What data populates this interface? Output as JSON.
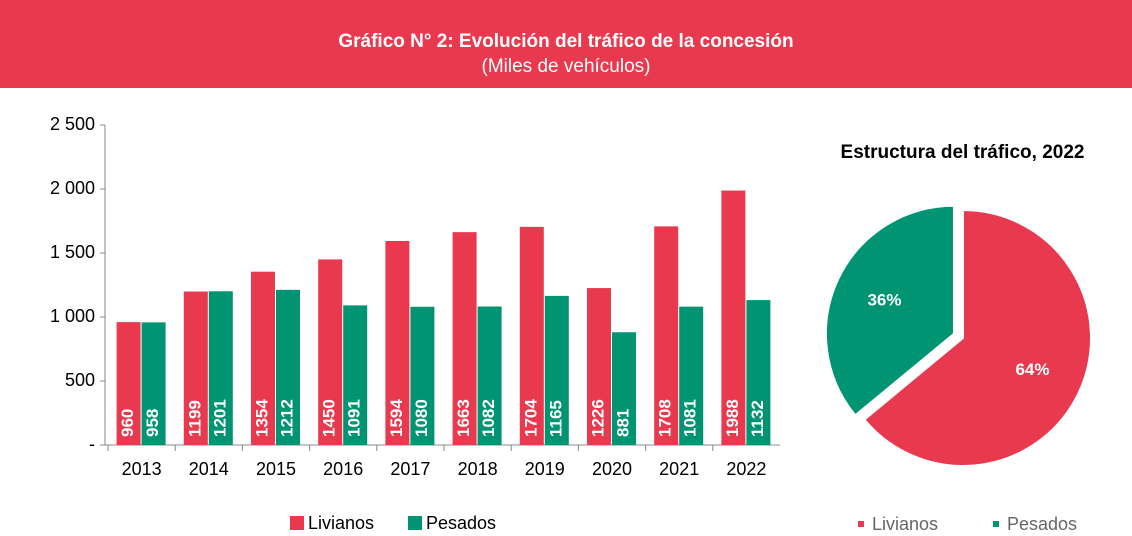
{
  "header": {
    "title": "Gráfico N° 2: Evolución del tráfico de la concesión",
    "subtitle": "(Miles de vehículos)"
  },
  "chart_data": [
    {
      "type": "bar",
      "categories": [
        "2013",
        "2014",
        "2015",
        "2016",
        "2017",
        "2018",
        "2019",
        "2020",
        "2021",
        "2022"
      ],
      "series": [
        {
          "name": "Livianos",
          "color": "#e8394f",
          "values": [
            960,
            1199,
            1354,
            1450,
            1594,
            1663,
            1704,
            1226,
            1708,
            1988
          ]
        },
        {
          "name": "Pesados",
          "color": "#009473",
          "values": [
            958,
            1201,
            1212,
            1091,
            1080,
            1082,
            1165,
            881,
            1081,
            1132
          ]
        }
      ],
      "ylim": [
        0,
        2500
      ],
      "yticks": [
        {
          "value": 0,
          "label": "-"
        },
        500,
        {
          "value": 1000,
          "label": "1 000"
        },
        {
          "value": 1500,
          "label": "1 500"
        },
        {
          "value": 2000,
          "label": "2 000"
        },
        {
          "value": 2500,
          "label": "2 500"
        }
      ],
      "legend": "bottom"
    },
    {
      "type": "pie",
      "title": "Estructura del tráfico, 2022",
      "categories": [
        "Livianos",
        "Pesados"
      ],
      "values": [
        64,
        36
      ],
      "value_labels": [
        "64%",
        "36%"
      ],
      "colors": [
        "#e8394f",
        "#009473"
      ],
      "legend": "bottom"
    }
  ]
}
